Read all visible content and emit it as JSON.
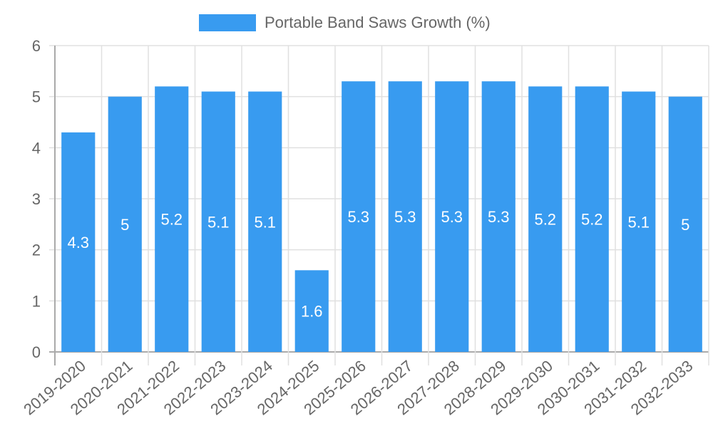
{
  "legend": {
    "label": "Portable Band Saws Growth (%)",
    "color": "#389bf0"
  },
  "chart_data": {
    "type": "bar",
    "title": "",
    "xlabel": "",
    "ylabel": "",
    "ylim": [
      0,
      6
    ],
    "yticks": [
      0,
      1,
      2,
      3,
      4,
      5,
      6
    ],
    "grid": true,
    "legend_position": "top",
    "categories": [
      "2019-2020",
      "2020-2021",
      "2021-2022",
      "2022-2023",
      "2023-2024",
      "2024-2025",
      "2025-2026",
      "2026-2027",
      "2027-2028",
      "2028-2029",
      "2029-2030",
      "2030-2031",
      "2031-2032",
      "2032-2033"
    ],
    "series": [
      {
        "name": "Portable Band Saws Growth (%)",
        "color": "#389bf0",
        "values": [
          4.3,
          5,
          5.2,
          5.1,
          5.1,
          1.6,
          5.3,
          5.3,
          5.3,
          5.3,
          5.2,
          5.2,
          5.1,
          5
        ]
      }
    ]
  }
}
